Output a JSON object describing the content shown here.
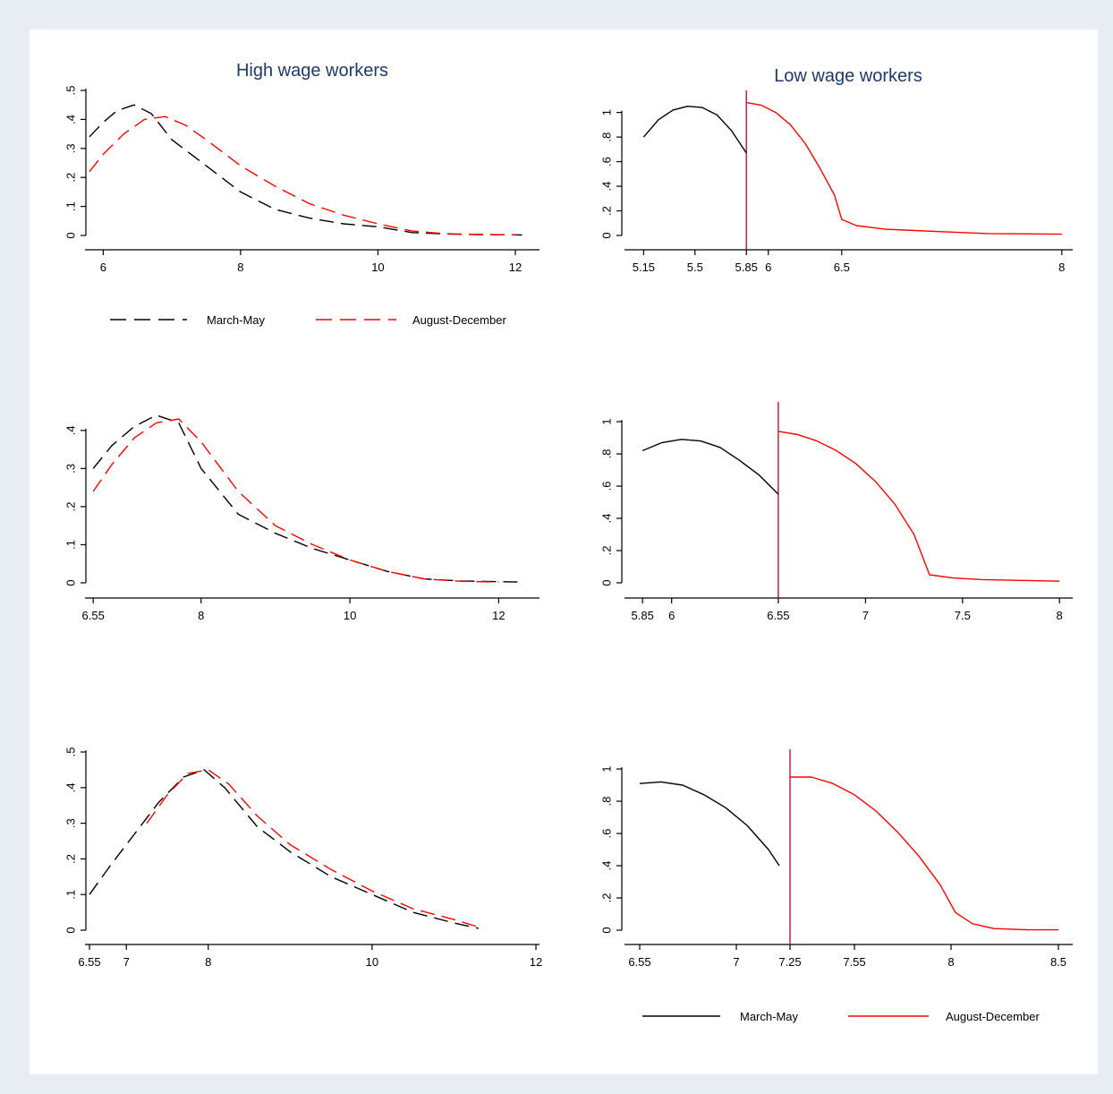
{
  "colors": {
    "black": "#000000",
    "red": "#ff0000",
    "cutoff": "#c0002a",
    "title": "#1f3a6a",
    "background": "#e8ecf3",
    "panel": "#ffffff"
  },
  "titles": {
    "left": "High wage workers",
    "right": "Low wage workers"
  },
  "legends": {
    "top": {
      "style": "dashed",
      "items": [
        "March-May",
        "August-December"
      ]
    },
    "bottom": {
      "style": "solid",
      "items": [
        "March-May",
        "August-December"
      ]
    }
  },
  "chart_data": [
    {
      "type": "line",
      "panel": "high-wage-1",
      "xlim": [
        5.8,
        12.3
      ],
      "ylim": [
        0,
        0.5
      ],
      "x_ticks": [
        6,
        8,
        10,
        12
      ],
      "x_tick_labels": [
        "6",
        "8",
        "10",
        "12"
      ],
      "y_ticks": [
        0,
        0.1,
        0.2,
        0.3,
        0.4,
        0.5
      ],
      "y_tick_labels": [
        "0",
        ".1",
        ".2",
        ".3",
        ".4",
        ".5"
      ],
      "series": [
        {
          "name": "March-May",
          "color": "black",
          "dash": true,
          "x": [
            5.8,
            6.0,
            6.2,
            6.45,
            6.7,
            7.0,
            7.5,
            8.0,
            8.5,
            9.0,
            9.5,
            10.0,
            10.5,
            11.0,
            11.5,
            12.1
          ],
          "y": [
            0.34,
            0.39,
            0.43,
            0.45,
            0.42,
            0.33,
            0.24,
            0.15,
            0.09,
            0.06,
            0.04,
            0.03,
            0.01,
            0.005,
            0.003,
            0.002
          ]
        },
        {
          "name": "August-December",
          "color": "red",
          "dash": true,
          "x": [
            5.8,
            6.0,
            6.3,
            6.6,
            6.9,
            7.2,
            7.5,
            8.0,
            8.5,
            9.0,
            9.5,
            10.0,
            10.5,
            11.0,
            11.5,
            12.0
          ],
          "y": [
            0.22,
            0.28,
            0.35,
            0.4,
            0.41,
            0.38,
            0.33,
            0.24,
            0.17,
            0.11,
            0.07,
            0.04,
            0.015,
            0.006,
            0.003,
            0.002
          ]
        }
      ]
    },
    {
      "type": "line",
      "panel": "low-wage-1",
      "xlim": [
        5.05,
        8.05
      ],
      "ylim": [
        0,
        1.15
      ],
      "x_ticks": [
        5.15,
        5.5,
        5.85,
        6.0,
        6.5,
        8.0
      ],
      "x_tick_labels": [
        "5.15",
        "5.5",
        "5.85",
        "6",
        "6.5",
        "8"
      ],
      "y_ticks": [
        0,
        0.2,
        0.4,
        0.6,
        0.8,
        1.0
      ],
      "y_tick_labels": [
        "0",
        ".2",
        ".4",
        ".6",
        ".8",
        "1"
      ],
      "cutoff": 5.85,
      "series": [
        {
          "name": "March-May",
          "color": "black",
          "dash": false,
          "x": [
            5.15,
            5.25,
            5.35,
            5.45,
            5.55,
            5.65,
            5.75,
            5.85
          ],
          "y": [
            0.8,
            0.94,
            1.02,
            1.05,
            1.04,
            0.98,
            0.85,
            0.67
          ]
        },
        {
          "name": "August-December",
          "color": "red",
          "dash": false,
          "x": [
            5.85,
            5.95,
            6.05,
            6.15,
            6.25,
            6.35,
            6.45,
            6.5,
            6.6,
            6.8,
            7.0,
            7.2,
            7.5,
            8.0
          ],
          "y": [
            1.08,
            1.06,
            1.0,
            0.9,
            0.75,
            0.55,
            0.33,
            0.13,
            0.08,
            0.05,
            0.04,
            0.03,
            0.015,
            0.01
          ]
        }
      ]
    },
    {
      "type": "line",
      "panel": "high-wage-2",
      "xlim": [
        6.5,
        12.5
      ],
      "ylim": [
        0,
        0.47
      ],
      "x_ticks": [
        6.55,
        8,
        10,
        12
      ],
      "x_tick_labels": [
        "6.55",
        "8",
        "10",
        "12"
      ],
      "y_ticks": [
        0,
        0.1,
        0.2,
        0.3,
        0.4
      ],
      "y_tick_labels": [
        "0",
        ".1",
        ".2",
        ".3",
        ".4"
      ],
      "series": [
        {
          "name": "March-May",
          "color": "black",
          "dash": true,
          "x": [
            6.55,
            6.8,
            7.1,
            7.4,
            7.7,
            8.0,
            8.5,
            9.0,
            9.5,
            10.0,
            10.5,
            11.0,
            11.5,
            12.0,
            12.3
          ],
          "y": [
            0.3,
            0.36,
            0.41,
            0.44,
            0.42,
            0.3,
            0.18,
            0.13,
            0.09,
            0.06,
            0.03,
            0.01,
            0.005,
            0.003,
            0.002
          ]
        },
        {
          "name": "August-December",
          "color": "red",
          "dash": true,
          "x": [
            6.55,
            6.8,
            7.1,
            7.4,
            7.7,
            8.0,
            8.5,
            9.0,
            9.5,
            10.0,
            10.5,
            11.0,
            11.5,
            12.0
          ],
          "y": [
            0.24,
            0.31,
            0.38,
            0.42,
            0.43,
            0.37,
            0.24,
            0.15,
            0.1,
            0.06,
            0.03,
            0.01,
            0.004,
            0.002
          ]
        }
      ]
    },
    {
      "type": "line",
      "panel": "low-wage-2",
      "xlim": [
        5.78,
        8.05
      ],
      "ylim": [
        0,
        1.1
      ],
      "x_ticks": [
        5.85,
        6.0,
        6.55,
        7.0,
        7.5,
        8.0
      ],
      "x_tick_labels": [
        "5.85",
        "6",
        "6.55",
        "7",
        "7.5",
        "8"
      ],
      "y_ticks": [
        0,
        0.2,
        0.4,
        0.6,
        0.8,
        1.0
      ],
      "y_tick_labels": [
        "0",
        ".2",
        ".4",
        ".6",
        ".8",
        "1"
      ],
      "cutoff": 6.55,
      "series": [
        {
          "name": "March-May",
          "color": "black",
          "dash": false,
          "x": [
            5.85,
            5.95,
            6.05,
            6.15,
            6.25,
            6.35,
            6.45,
            6.55
          ],
          "y": [
            0.82,
            0.87,
            0.89,
            0.88,
            0.84,
            0.76,
            0.67,
            0.55
          ]
        },
        {
          "name": "August-December",
          "color": "red",
          "dash": false,
          "x": [
            6.55,
            6.65,
            6.75,
            6.85,
            6.95,
            7.05,
            7.15,
            7.25,
            7.33,
            7.45,
            7.6,
            7.8,
            8.0
          ],
          "y": [
            0.94,
            0.92,
            0.88,
            0.82,
            0.74,
            0.63,
            0.49,
            0.3,
            0.05,
            0.03,
            0.02,
            0.015,
            0.01
          ]
        }
      ]
    },
    {
      "type": "line",
      "panel": "high-wage-3",
      "xlim": [
        6.55,
        12.0
      ],
      "ylim": [
        0,
        0.5
      ],
      "x_ticks": [
        6.55,
        7,
        8,
        10,
        12
      ],
      "x_tick_labels": [
        "6.55",
        "7",
        "8",
        "10",
        "12"
      ],
      "y_ticks": [
        0,
        0.1,
        0.2,
        0.3,
        0.4,
        0.5
      ],
      "y_tick_labels": [
        "0",
        ".1",
        ".2",
        ".3",
        ".4",
        ".5"
      ],
      "series": [
        {
          "name": "March-May",
          "color": "black",
          "dash": true,
          "x": [
            6.55,
            6.8,
            7.1,
            7.4,
            7.7,
            7.95,
            8.2,
            8.6,
            9.0,
            9.5,
            10.0,
            10.5,
            11.0,
            11.3
          ],
          "y": [
            0.1,
            0.18,
            0.27,
            0.36,
            0.43,
            0.45,
            0.4,
            0.29,
            0.22,
            0.15,
            0.1,
            0.05,
            0.02,
            0.005
          ]
        },
        {
          "name": "August-December",
          "color": "red",
          "dash": true,
          "x": [
            7.25,
            7.5,
            7.75,
            8.0,
            8.25,
            8.6,
            9.0,
            9.5,
            10.0,
            10.5,
            11.0,
            11.35
          ],
          "y": [
            0.3,
            0.38,
            0.44,
            0.45,
            0.41,
            0.32,
            0.24,
            0.17,
            0.11,
            0.06,
            0.03,
            0.005
          ]
        }
      ]
    },
    {
      "type": "line",
      "panel": "low-wage-3",
      "xlim": [
        6.5,
        8.55
      ],
      "ylim": [
        0,
        1.1
      ],
      "x_ticks": [
        6.55,
        7.0,
        7.25,
        7.55,
        8.0,
        8.5
      ],
      "x_tick_labels": [
        "6.55",
        "7",
        "7.25",
        "7.55",
        "8",
        "8.5"
      ],
      "y_ticks": [
        0,
        0.2,
        0.4,
        0.6,
        0.8,
        1.0
      ],
      "y_tick_labels": [
        "0",
        ".2",
        ".4",
        ".6",
        ".8",
        "1"
      ],
      "cutoff": 7.25,
      "series": [
        {
          "name": "March-May",
          "color": "black",
          "dash": false,
          "x": [
            6.55,
            6.65,
            6.75,
            6.85,
            6.95,
            7.05,
            7.15,
            7.2
          ],
          "y": [
            0.91,
            0.92,
            0.9,
            0.84,
            0.76,
            0.65,
            0.5,
            0.4
          ]
        },
        {
          "name": "August-December",
          "color": "red",
          "dash": false,
          "x": [
            7.25,
            7.35,
            7.45,
            7.55,
            7.65,
            7.75,
            7.85,
            7.95,
            8.02,
            8.1,
            8.2,
            8.35,
            8.5
          ],
          "y": [
            0.95,
            0.95,
            0.91,
            0.84,
            0.74,
            0.61,
            0.46,
            0.28,
            0.11,
            0.04,
            0.01,
            0.003,
            0.002
          ]
        }
      ]
    }
  ]
}
